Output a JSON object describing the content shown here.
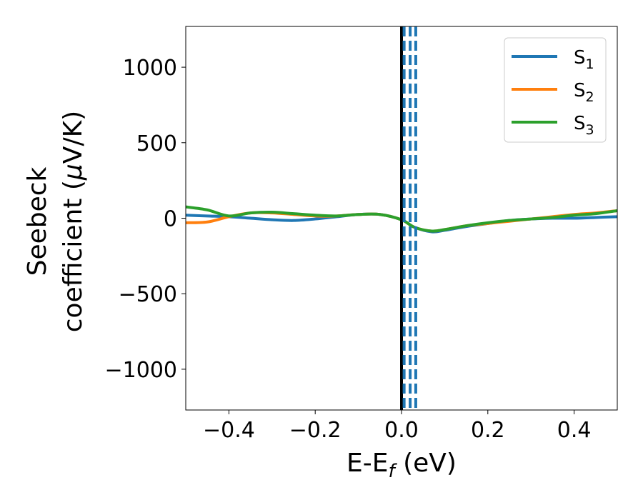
{
  "chart_data": {
    "type": "line",
    "xlabel_main": "E-E",
    "xlabel_sub": "f",
    "xlabel_unit": " (eV)",
    "ylabel_line1": "Seebeck",
    "ylabel_line2_a": "coefficient  (",
    "ylabel_line2_mu": "μ",
    "ylabel_line2_b": "V/K)",
    "xlim": [
      -0.5,
      0.5
    ],
    "ylim": [
      -1270,
      1270
    ],
    "x_ticks": [
      -0.4,
      -0.2,
      0.0,
      0.2,
      0.4
    ],
    "x_tick_labels": [
      "−0.4",
      "−0.2",
      "0.0",
      "0.2",
      "0.4"
    ],
    "y_ticks": [
      1000,
      500,
      0,
      -500,
      -1000
    ],
    "y_tick_labels": [
      "1000",
      "500",
      "0",
      "−500",
      "−1000"
    ],
    "legend_position": "top-right",
    "grid": false,
    "vertical_lines": [
      {
        "x": 0.0,
        "style": "solid",
        "color": "#000000"
      },
      {
        "x": 0.006,
        "style": "dashed",
        "color": "#1f77b4"
      },
      {
        "x": 0.02,
        "style": "dashed",
        "color": "#1f77b4"
      },
      {
        "x": 0.033,
        "style": "dashed",
        "color": "#1f77b4"
      }
    ],
    "series": [
      {
        "name_main": "S",
        "name_sub": "1",
        "color": "#1f77b4",
        "x": [
          -0.5,
          -0.45,
          -0.4,
          -0.35,
          -0.3,
          -0.25,
          -0.2,
          -0.15,
          -0.1,
          -0.05,
          0.0,
          0.03,
          0.07,
          0.1,
          0.15,
          0.2,
          0.25,
          0.3,
          0.35,
          0.4,
          0.45,
          0.5
        ],
        "y": [
          20,
          15,
          10,
          0,
          -10,
          -15,
          -5,
          10,
          25,
          25,
          -10,
          -60,
          -90,
          -80,
          -55,
          -35,
          -15,
          -5,
          0,
          0,
          5,
          10
        ]
      },
      {
        "name_main": "S",
        "name_sub": "2",
        "color": "#ff7f0e",
        "x": [
          -0.5,
          -0.45,
          -0.4,
          -0.35,
          -0.3,
          -0.25,
          -0.2,
          -0.15,
          -0.1,
          -0.05,
          0.0,
          0.03,
          0.07,
          0.1,
          0.15,
          0.2,
          0.25,
          0.3,
          0.35,
          0.4,
          0.45,
          0.5
        ],
        "y": [
          -30,
          -25,
          10,
          35,
          35,
          25,
          15,
          15,
          25,
          25,
          -10,
          -60,
          -85,
          -75,
          -50,
          -35,
          -20,
          -5,
          10,
          25,
          35,
          50
        ]
      },
      {
        "name_main": "S",
        "name_sub": "3",
        "color": "#2ca02c",
        "x": [
          -0.5,
          -0.45,
          -0.4,
          -0.35,
          -0.3,
          -0.25,
          -0.2,
          -0.15,
          -0.1,
          -0.05,
          0.0,
          0.03,
          0.07,
          0.1,
          0.15,
          0.2,
          0.25,
          0.3,
          0.35,
          0.4,
          0.45,
          0.5
        ],
        "y": [
          75,
          55,
          15,
          35,
          40,
          30,
          20,
          15,
          25,
          25,
          -10,
          -60,
          -85,
          -75,
          -50,
          -30,
          -15,
          -5,
          5,
          20,
          30,
          50
        ]
      }
    ]
  }
}
